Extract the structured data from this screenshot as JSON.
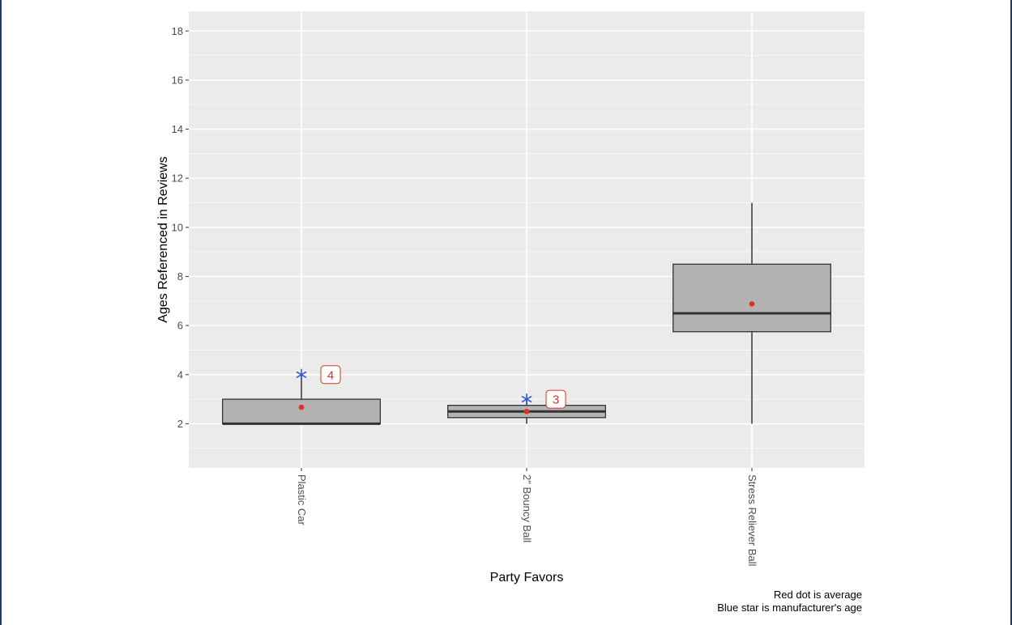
{
  "chart_data": {
    "type": "box",
    "xlabel": "Party Favors",
    "ylabel": "Ages Referenced in Reviews",
    "ylim": [
      0.2,
      18.8
    ],
    "y_ticks": [
      2,
      4,
      6,
      8,
      10,
      12,
      14,
      16,
      18
    ],
    "categories": [
      "Plastic Car",
      "2\" Bouncy Ball",
      "Stress Reliever Ball"
    ],
    "boxes": [
      {
        "category": "Plastic Car",
        "min": 2,
        "q1": 2,
        "median": 2,
        "q3": 3,
        "max": 4,
        "mean": 2.67,
        "manufacturer_age": 4,
        "label": "4"
      },
      {
        "category": "2\" Bouncy Ball",
        "min": 2,
        "q1": 2.25,
        "median": 2.5,
        "q3": 2.75,
        "max": 3,
        "mean": 2.5,
        "manufacturer_age": 3,
        "label": "3"
      },
      {
        "category": "Stress Reliever Ball",
        "min": 2,
        "q1": 5.75,
        "median": 6.5,
        "q3": 8.5,
        "max": 11,
        "mean": 6.88,
        "manufacturer_age": null,
        "label": ""
      }
    ],
    "captions": [
      "Red dot is average",
      "Blue star is manufacturer's age"
    ],
    "grid": true,
    "colors": {
      "panel": "#ebebeb",
      "box_fill": "#b3b3b3",
      "mean": "#e0301e",
      "star": "#3355dd"
    }
  }
}
